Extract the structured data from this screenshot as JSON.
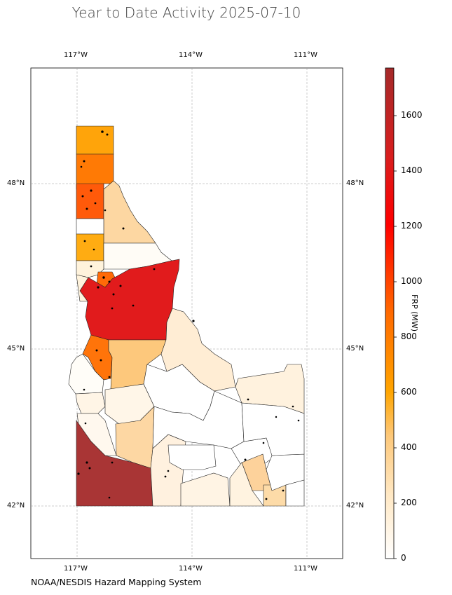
{
  "title": "Year to Date Activity 2025-07-10",
  "source": "NOAA/NESDIS Hazard Mapping System",
  "map": {
    "region": "Idaho",
    "units": "FRP (MW)",
    "lon_ticks": [
      "117°W",
      "114°W",
      "111°W"
    ],
    "lat_ticks": [
      "48°N",
      "45°N",
      "42°N"
    ]
  },
  "colorbar": {
    "label": "FRP (MW)",
    "ticks": [
      "0",
      "200",
      "400",
      "600",
      "800",
      "1000",
      "1200",
      "1400",
      "1600"
    ],
    "min": 0,
    "max": 1770,
    "colors": [
      "#ffffff",
      "#ffe4b5",
      "#ffa500",
      "#ff0000",
      "#a52a2a"
    ]
  },
  "fire_detections": "black points scattered across counties"
}
